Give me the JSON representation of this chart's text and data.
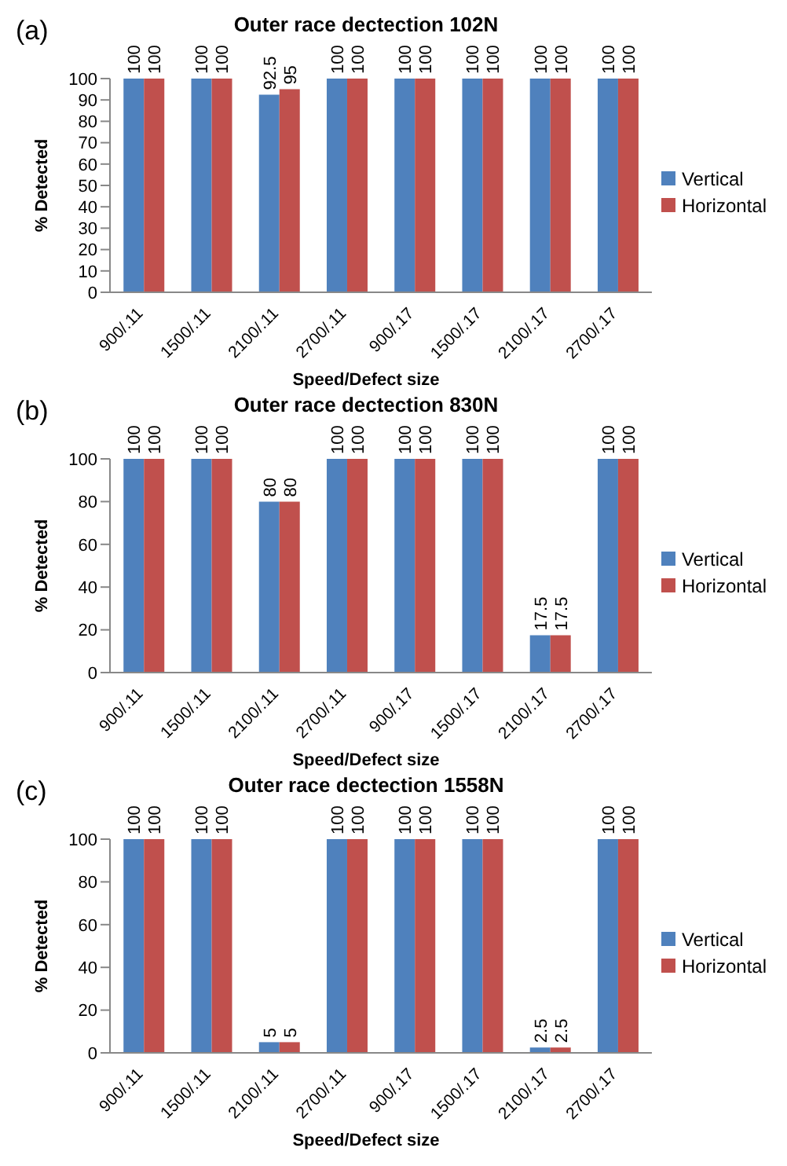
{
  "chart_data": [
    {
      "type": "bar",
      "title": "Outer race dectection 102N",
      "annotations": [
        "(a)"
      ],
      "xlabel": "Speed/Defect size",
      "ylabel": "% Detected",
      "categories": [
        "900/.11",
        "1500/.11",
        "2100/.11",
        "2700/.11",
        "900/.17",
        "1500/.17",
        "2100/.17",
        "2700/.17"
      ],
      "series": [
        {
          "name": "Vertical",
          "color": "#4f81bd",
          "values": [
            100,
            100,
            92.5,
            100,
            100,
            100,
            100,
            100
          ]
        },
        {
          "name": "Horizontal",
          "color": "#c0504d",
          "values": [
            100,
            100,
            95,
            100,
            100,
            100,
            100,
            100
          ]
        }
      ],
      "ylim": [
        0,
        100
      ],
      "yticks": [
        0,
        10,
        20,
        30,
        40,
        50,
        60,
        70,
        80,
        90,
        100
      ],
      "data_labels": true,
      "legend": "right"
    },
    {
      "type": "bar",
      "title": "Outer race dectection 830N",
      "annotations": [
        "(b)"
      ],
      "xlabel": "Speed/Defect size",
      "ylabel": "% Detected",
      "categories": [
        "900/.11",
        "1500/.11",
        "2100/.11",
        "2700/.11",
        "900/.17",
        "1500/.17",
        "2100/.17",
        "2700/.17"
      ],
      "series": [
        {
          "name": "Vertical",
          "color": "#4f81bd",
          "values": [
            100,
            100,
            80,
            100,
            100,
            100,
            17.5,
            100
          ]
        },
        {
          "name": "Horizontal",
          "color": "#c0504d",
          "values": [
            100,
            100,
            80,
            100,
            100,
            100,
            17.5,
            100
          ]
        }
      ],
      "ylim": [
        0,
        100
      ],
      "yticks": [
        0,
        20,
        40,
        60,
        80,
        100
      ],
      "data_labels": true,
      "legend": "right"
    },
    {
      "type": "bar",
      "title": "Outer race dectection 1558N",
      "annotations": [
        "(c)"
      ],
      "xlabel": "Speed/Defect size",
      "ylabel": "% Detected",
      "categories": [
        "900/.11",
        "1500/.11",
        "2100/.11",
        "2700/.11",
        "900/.17",
        "1500/.17",
        "2100/.17",
        "2700/.17"
      ],
      "series": [
        {
          "name": "Vertical",
          "color": "#4f81bd",
          "values": [
            100,
            100,
            5,
            100,
            100,
            100,
            2.5,
            100
          ]
        },
        {
          "name": "Horizontal",
          "color": "#c0504d",
          "values": [
            100,
            100,
            5,
            100,
            100,
            100,
            2.5,
            100
          ]
        }
      ],
      "ylim": [
        0,
        100
      ],
      "yticks": [
        0,
        20,
        40,
        60,
        80,
        100
      ],
      "data_labels": true,
      "legend": "right"
    }
  ]
}
